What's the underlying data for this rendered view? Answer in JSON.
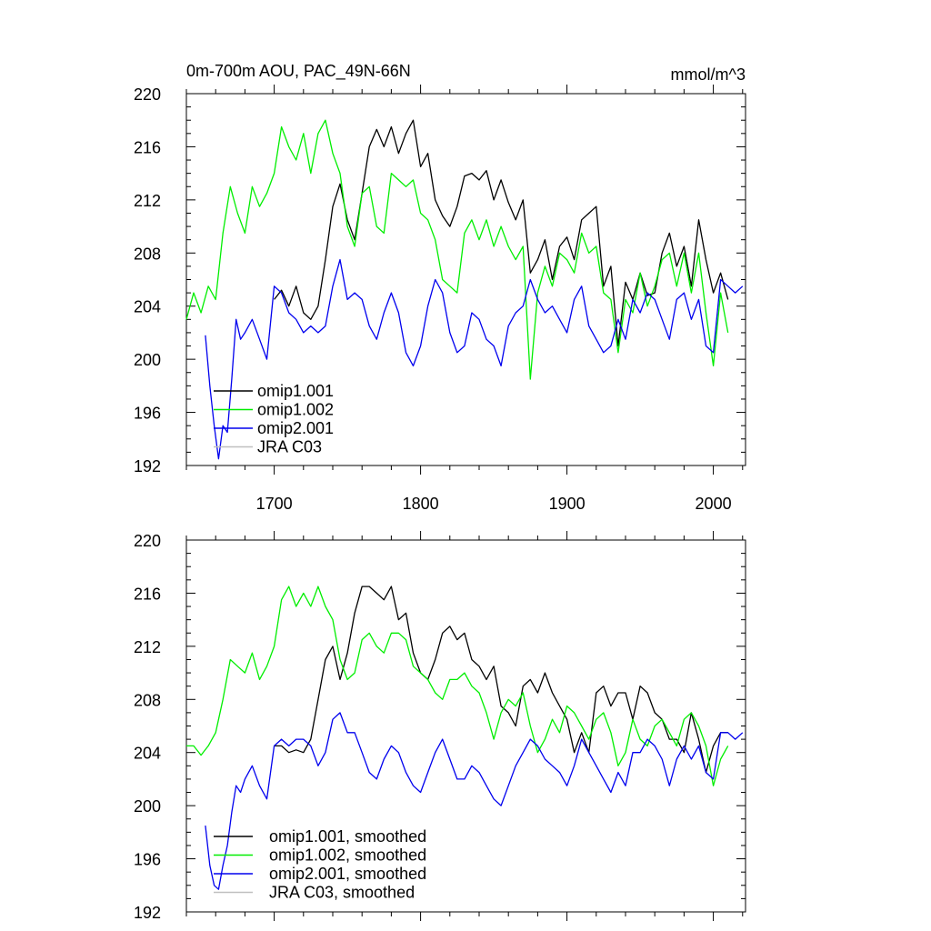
{
  "chart_data": [
    {
      "type": "line",
      "title": "0m-700m AOU, PAC_49N-66N",
      "units": "mmol/m^3",
      "xlim": [
        1640,
        2022
      ],
      "ylim": [
        192,
        220
      ],
      "yticks": [
        "192",
        "196",
        "200",
        "204",
        "208",
        "212",
        "216",
        "220"
      ],
      "xticks": [
        "1700",
        "1800",
        "1900",
        "2000"
      ],
      "legend_position": "bottom-left",
      "series": [
        {
          "name": "omip1.001",
          "color": "#000000",
          "x": [
            1700,
            1705,
            1710,
            1715,
            1720,
            1725,
            1730,
            1735,
            1740,
            1745,
            1750,
            1755,
            1760,
            1765,
            1770,
            1775,
            1780,
            1785,
            1790,
            1795,
            1800,
            1805,
            1810,
            1815,
            1820,
            1825,
            1830,
            1835,
            1840,
            1845,
            1850,
            1855,
            1860,
            1865,
            1870,
            1875,
            1880,
            1885,
            1890,
            1895,
            1900,
            1905,
            1910,
            1915,
            1920,
            1925,
            1930,
            1935,
            1940,
            1945,
            1950,
            1955,
            1960,
            1965,
            1970,
            1975,
            1980,
            1985,
            1990,
            1995,
            2000,
            2005,
            2010
          ],
          "values": [
            204.5,
            205.2,
            204.0,
            205.5,
            203.5,
            203.0,
            204.0,
            207.5,
            211.5,
            213.2,
            210.5,
            209.0,
            212.5,
            216.0,
            217.3,
            216.0,
            217.5,
            215.5,
            217.0,
            218.0,
            214.5,
            215.5,
            212.0,
            210.8,
            210.0,
            211.5,
            213.8,
            214.0,
            213.5,
            214.2,
            212.0,
            213.5,
            211.8,
            210.5,
            212.0,
            206.5,
            207.5,
            209.0,
            206.0,
            208.5,
            209.2,
            207.5,
            210.5,
            211.0,
            211.5,
            205.5,
            207.0,
            201.0,
            205.8,
            204.5,
            206.5,
            204.8,
            205.0,
            208.0,
            209.5,
            207.0,
            208.5,
            205.5,
            210.5,
            207.5,
            205.0,
            206.5,
            204.5
          ]
        },
        {
          "name": "omip1.002",
          "color": "#00ee00",
          "x": [
            1640,
            1645,
            1650,
            1655,
            1660,
            1665,
            1670,
            1675,
            1680,
            1685,
            1690,
            1695,
            1700,
            1705,
            1710,
            1715,
            1720,
            1725,
            1730,
            1735,
            1740,
            1745,
            1750,
            1755,
            1760,
            1765,
            1770,
            1775,
            1780,
            1785,
            1790,
            1795,
            1800,
            1805,
            1810,
            1815,
            1820,
            1825,
            1830,
            1835,
            1840,
            1845,
            1850,
            1855,
            1860,
            1865,
            1870,
            1875,
            1880,
            1885,
            1890,
            1895,
            1900,
            1905,
            1910,
            1915,
            1920,
            1925,
            1930,
            1935,
            1940,
            1945,
            1950,
            1955,
            1960,
            1965,
            1970,
            1975,
            1980,
            1985,
            1990,
            1995,
            2000,
            2005,
            2010
          ],
          "values": [
            203.0,
            205.0,
            203.5,
            205.5,
            204.5,
            209.5,
            213.0,
            211.0,
            209.5,
            213.0,
            211.5,
            212.5,
            214.0,
            217.5,
            216.0,
            215.0,
            217.0,
            214.0,
            217.0,
            218.0,
            215.5,
            214.0,
            210.0,
            208.5,
            212.5,
            213.0,
            210.0,
            209.5,
            214.0,
            213.5,
            213.0,
            213.5,
            211.0,
            210.5,
            209.0,
            206.0,
            205.5,
            205.0,
            209.5,
            210.5,
            209.0,
            210.5,
            208.5,
            210.0,
            208.5,
            207.5,
            208.5,
            198.5,
            205.0,
            207.0,
            205.5,
            208.0,
            207.5,
            206.5,
            209.5,
            208.0,
            208.5,
            205.0,
            204.5,
            200.5,
            204.5,
            203.5,
            206.5,
            204.0,
            205.5,
            207.5,
            208.0,
            205.5,
            208.0,
            205.0,
            208.0,
            203.5,
            199.5,
            205.0,
            202.0
          ]
        },
        {
          "name": "omip2.001",
          "color": "#0000ee",
          "x": [
            1653,
            1656,
            1659,
            1662,
            1665,
            1668,
            1671,
            1674,
            1677,
            1680,
            1685,
            1690,
            1695,
            1700,
            1705,
            1710,
            1715,
            1720,
            1725,
            1730,
            1735,
            1740,
            1745,
            1750,
            1755,
            1760,
            1765,
            1770,
            1775,
            1780,
            1785,
            1790,
            1795,
            1800,
            1805,
            1810,
            1815,
            1820,
            1825,
            1830,
            1835,
            1840,
            1845,
            1850,
            1855,
            1860,
            1865,
            1870,
            1875,
            1880,
            1885,
            1890,
            1895,
            1900,
            1905,
            1910,
            1915,
            1920,
            1925,
            1930,
            1935,
            1940,
            1945,
            1950,
            1955,
            1960,
            1965,
            1970,
            1975,
            1980,
            1985,
            1990,
            1995,
            2000,
            2005,
            2010,
            2015,
            2020
          ],
          "values": [
            201.8,
            198.0,
            195.0,
            192.5,
            195.0,
            194.5,
            198.5,
            203.0,
            201.5,
            202.0,
            203.0,
            201.5,
            200.0,
            205.5,
            205.0,
            203.5,
            203.0,
            202.0,
            202.5,
            202.0,
            202.5,
            205.5,
            207.5,
            204.5,
            205.0,
            204.5,
            202.5,
            201.5,
            203.5,
            205.0,
            203.5,
            200.5,
            199.5,
            201.0,
            204.0,
            206.0,
            205.0,
            202.0,
            200.5,
            201.0,
            203.5,
            203.0,
            201.5,
            201.0,
            199.5,
            202.5,
            203.5,
            204.0,
            206.0,
            204.5,
            203.5,
            204.0,
            203.0,
            202.0,
            204.5,
            205.5,
            202.5,
            201.5,
            200.5,
            201.0,
            203.0,
            201.5,
            204.5,
            203.5,
            205.0,
            204.5,
            203.0,
            201.5,
            204.5,
            205.0,
            203.0,
            204.5,
            201.0,
            200.5,
            206.0,
            205.5,
            205.0,
            205.5
          ]
        },
        {
          "name": "JRA C03",
          "color": "#c0c0c0",
          "x": [],
          "values": []
        }
      ]
    },
    {
      "type": "line",
      "title": "",
      "xlim": [
        1640,
        2022
      ],
      "ylim": [
        192,
        220
      ],
      "yticks": [
        "192",
        "196",
        "200",
        "204",
        "208",
        "212",
        "216",
        "220"
      ],
      "legend_position": "bottom-left",
      "series": [
        {
          "name": "omip1.001, smoothed",
          "color": "#000000",
          "x": [
            1700,
            1705,
            1710,
            1715,
            1720,
            1725,
            1730,
            1735,
            1740,
            1745,
            1750,
            1755,
            1760,
            1765,
            1770,
            1775,
            1780,
            1785,
            1790,
            1795,
            1800,
            1805,
            1810,
            1815,
            1820,
            1825,
            1830,
            1835,
            1840,
            1845,
            1850,
            1855,
            1860,
            1865,
            1870,
            1875,
            1880,
            1885,
            1890,
            1895,
            1900,
            1905,
            1910,
            1915,
            1920,
            1925,
            1930,
            1935,
            1940,
            1945,
            1950,
            1955,
            1960,
            1965,
            1970,
            1975,
            1980,
            1985,
            1990,
            1995,
            2000,
            2005,
            2010
          ],
          "values": [
            204.5,
            204.5,
            204.0,
            204.2,
            204.0,
            205.0,
            208.0,
            211.0,
            212.0,
            209.5,
            211.5,
            214.5,
            216.5,
            216.5,
            216.0,
            215.5,
            216.5,
            214.0,
            214.5,
            211.5,
            210.0,
            209.5,
            211.0,
            213.0,
            213.5,
            212.5,
            213.0,
            211.0,
            210.5,
            209.5,
            210.5,
            207.5,
            207.0,
            206.0,
            209.0,
            209.5,
            208.5,
            210.0,
            208.5,
            207.5,
            206.5,
            204.0,
            205.5,
            204.0,
            208.5,
            209.0,
            207.5,
            208.5,
            208.5,
            206.5,
            209.0,
            208.5,
            207.0,
            206.5,
            205.0,
            205.0,
            204.0,
            207.0,
            205.0,
            202.5,
            204.5,
            205.5,
            205.5
          ]
        },
        {
          "name": "omip1.002, smoothed",
          "color": "#00ee00",
          "x": [
            1640,
            1645,
            1650,
            1655,
            1660,
            1665,
            1670,
            1675,
            1680,
            1685,
            1690,
            1695,
            1700,
            1705,
            1710,
            1715,
            1720,
            1725,
            1730,
            1735,
            1740,
            1745,
            1750,
            1755,
            1760,
            1765,
            1770,
            1775,
            1780,
            1785,
            1790,
            1795,
            1800,
            1805,
            1810,
            1815,
            1820,
            1825,
            1830,
            1835,
            1840,
            1845,
            1850,
            1855,
            1860,
            1865,
            1870,
            1875,
            1880,
            1885,
            1890,
            1895,
            1900,
            1905,
            1910,
            1915,
            1920,
            1925,
            1930,
            1935,
            1940,
            1945,
            1950,
            1955,
            1960,
            1965,
            1970,
            1975,
            1980,
            1985,
            1990,
            1995,
            2000,
            2005,
            2010
          ],
          "values": [
            204.5,
            204.5,
            203.8,
            204.5,
            205.5,
            208.0,
            211.0,
            210.5,
            210.0,
            211.5,
            209.5,
            210.5,
            212.0,
            215.5,
            216.5,
            215.0,
            216.0,
            215.0,
            216.5,
            215.0,
            214.0,
            211.0,
            209.5,
            210.0,
            212.5,
            213.0,
            212.0,
            211.5,
            213.0,
            213.0,
            212.5,
            210.5,
            210.0,
            209.5,
            208.5,
            208.0,
            209.5,
            209.5,
            210.0,
            209.0,
            208.5,
            207.0,
            205.0,
            207.0,
            208.0,
            207.5,
            208.5,
            206.0,
            204.0,
            205.0,
            206.5,
            205.5,
            207.5,
            207.0,
            206.0,
            205.0,
            206.5,
            207.0,
            205.5,
            203.0,
            204.0,
            206.5,
            205.0,
            204.5,
            206.0,
            206.5,
            205.5,
            204.5,
            206.5,
            207.0,
            206.0,
            204.5,
            201.5,
            203.5,
            204.5
          ]
        },
        {
          "name": "omip2.001, smoothed",
          "color": "#0000ee",
          "x": [
            1653,
            1656,
            1659,
            1662,
            1665,
            1668,
            1671,
            1674,
            1677,
            1680,
            1685,
            1690,
            1695,
            1700,
            1705,
            1710,
            1715,
            1720,
            1725,
            1730,
            1735,
            1740,
            1745,
            1750,
            1755,
            1760,
            1765,
            1770,
            1775,
            1780,
            1785,
            1790,
            1795,
            1800,
            1805,
            1810,
            1815,
            1820,
            1825,
            1830,
            1835,
            1840,
            1845,
            1850,
            1855,
            1860,
            1865,
            1870,
            1875,
            1880,
            1885,
            1890,
            1895,
            1900,
            1905,
            1910,
            1915,
            1920,
            1925,
            1930,
            1935,
            1940,
            1945,
            1950,
            1955,
            1960,
            1965,
            1970,
            1975,
            1980,
            1985,
            1990,
            1995,
            2000,
            2005,
            2010,
            2015,
            2020
          ],
          "values": [
            198.5,
            195.5,
            194.0,
            193.7,
            195.5,
            197.0,
            199.5,
            201.5,
            201.0,
            202.0,
            203.0,
            201.5,
            200.5,
            204.5,
            205.0,
            204.5,
            205.0,
            205.0,
            204.5,
            203.0,
            204.0,
            206.5,
            207.0,
            205.5,
            205.5,
            204.0,
            202.5,
            202.0,
            203.5,
            204.5,
            204.0,
            202.5,
            201.5,
            201.0,
            202.5,
            204.0,
            205.0,
            203.5,
            202.0,
            202.0,
            203.0,
            202.5,
            201.5,
            200.5,
            200.0,
            201.5,
            203.0,
            204.0,
            205.0,
            204.5,
            203.5,
            203.0,
            202.5,
            201.5,
            203.0,
            205.0,
            204.0,
            203.0,
            202.0,
            201.0,
            202.5,
            201.5,
            204.0,
            204.0,
            205.0,
            204.5,
            203.5,
            201.5,
            203.5,
            204.5,
            203.5,
            204.5,
            202.5,
            202.0,
            205.5,
            205.5,
            205.0,
            205.5
          ]
        },
        {
          "name": "JRA C03, smoothed",
          "color": "#c0c0c0",
          "x": [],
          "values": []
        }
      ]
    }
  ]
}
